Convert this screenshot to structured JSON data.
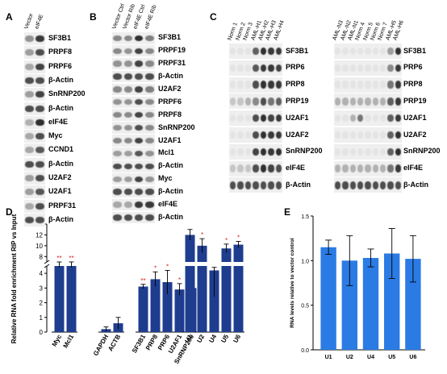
{
  "panel_letters": {
    "A": "A",
    "B": "B",
    "C": "C",
    "D": "D",
    "E": "E"
  },
  "panel_A": {
    "columns": [
      "Vector",
      "eIF4E"
    ],
    "rows": [
      {
        "label": "SF3B1",
        "bands": [
          0.45,
          0.9
        ]
      },
      {
        "label": "PRPF8",
        "bands": [
          0.4,
          0.8
        ]
      },
      {
        "label": "PRPF6",
        "bands": [
          0.35,
          0.85
        ]
      },
      {
        "label": "β-Actin",
        "bands": [
          0.8,
          0.8
        ]
      },
      {
        "label": "SnRNP200",
        "bands": [
          0.4,
          0.85
        ]
      },
      {
        "label": "β-Actin",
        "bands": [
          0.8,
          0.8
        ]
      },
      {
        "label": "eIF4E",
        "bands": [
          0.3,
          0.95
        ]
      },
      {
        "label": "Myc",
        "bands": [
          0.35,
          0.8
        ]
      },
      {
        "label": "CCND1",
        "bands": [
          0.35,
          0.75
        ]
      },
      {
        "label": "β-Actin",
        "bands": [
          0.8,
          0.8
        ]
      },
      {
        "label": "U2AF2",
        "bands": [
          0.4,
          0.8
        ]
      },
      {
        "label": "U2AF1",
        "bands": [
          0.4,
          0.75
        ]
      },
      {
        "label": "PRPF31",
        "bands": [
          0.35,
          0.8
        ]
      },
      {
        "label": "β-Actin",
        "bands": [
          0.8,
          0.8
        ]
      }
    ]
  },
  "panel_B": {
    "columns": [
      "Vector Ctrl",
      "Vector Rib",
      "eIF4E Ctrl",
      "eIF4E Rib"
    ],
    "rows": [
      {
        "label": "SF3B1",
        "bands": [
          0.5,
          0.5,
          0.95,
          0.55
        ]
      },
      {
        "label": "PRPF19",
        "bands": [
          0.5,
          0.45,
          0.85,
          0.5
        ]
      },
      {
        "label": "PRPF31",
        "bands": [
          0.45,
          0.45,
          0.85,
          0.5
        ]
      },
      {
        "label": "β-Actin",
        "bands": [
          0.8,
          0.8,
          0.8,
          0.8
        ]
      },
      {
        "label": "U2AF2",
        "bands": [
          0.5,
          0.5,
          0.85,
          0.55
        ]
      },
      {
        "label": "PRPF6",
        "bands": [
          0.45,
          0.45,
          0.8,
          0.5
        ]
      },
      {
        "label": "PRPF8",
        "bands": [
          0.5,
          0.5,
          0.85,
          0.5
        ]
      },
      {
        "label": "SnRNP200",
        "bands": [
          0.45,
          0.45,
          0.8,
          0.5
        ]
      },
      {
        "label": "U2AF1",
        "bands": [
          0.5,
          0.5,
          0.85,
          0.5
        ]
      },
      {
        "label": "Mcl1",
        "bands": [
          0.4,
          0.4,
          0.75,
          0.45
        ]
      },
      {
        "label": "β-Actin",
        "bands": [
          0.8,
          0.8,
          0.8,
          0.8
        ]
      },
      {
        "label": "Myc",
        "bands": [
          0.4,
          0.4,
          0.85,
          0.45
        ]
      },
      {
        "label": "β-Actin",
        "bands": [
          0.8,
          0.8,
          0.8,
          0.8
        ]
      },
      {
        "label": "eIF4E",
        "bands": [
          0.35,
          0.35,
          0.9,
          0.9
        ]
      },
      {
        "label": "β-Actin",
        "bands": [
          0.8,
          0.8,
          0.8,
          0.8
        ]
      }
    ]
  },
  "panel_C_left": {
    "columns": [
      "Norm 1",
      "Norm 2",
      "Norm 3",
      "AML-H1",
      "AML-H2",
      "AML-H3",
      "AML-H4"
    ],
    "rows": [
      {
        "label": "SF3B1",
        "bands": [
          0.05,
          0.05,
          0.05,
          0.7,
          0.95,
          0.9,
          0.9
        ]
      },
      {
        "label": "PRP6",
        "bands": [
          0.05,
          0.05,
          0.05,
          0.75,
          0.9,
          0.9,
          0.85
        ]
      },
      {
        "label": "PRP8",
        "bands": [
          0.05,
          0.05,
          0.05,
          0.8,
          0.95,
          0.9,
          0.9
        ]
      },
      {
        "label": "PRP19",
        "bands": [
          0.2,
          0.2,
          0.3,
          0.5,
          0.8,
          0.6,
          0.7
        ]
      },
      {
        "label": "U2AF1",
        "bands": [
          0.05,
          0.05,
          0.05,
          0.8,
          0.95,
          0.85,
          0.9
        ]
      },
      {
        "label": "U2AF2",
        "bands": [
          0.05,
          0.05,
          0.05,
          0.8,
          0.95,
          0.9,
          0.9
        ]
      },
      {
        "label": "SnRNP200",
        "bands": [
          0.05,
          0.05,
          0.05,
          0.85,
          0.95,
          0.9,
          0.95
        ]
      },
      {
        "label": "eIF4E",
        "bands": [
          0.2,
          0.2,
          0.2,
          0.8,
          0.95,
          0.85,
          0.8
        ]
      },
      {
        "label": "β-Actin",
        "bands": [
          0.8,
          0.8,
          0.8,
          0.8,
          0.8,
          0.8,
          0.8
        ]
      }
    ]
  },
  "panel_C_right": {
    "columns": [
      "AML-N3",
      "AML-N2",
      "AML-N1",
      "Norm 4",
      "Norm 5",
      "Norm 6",
      "Norm 7",
      "AML-H5",
      "AML-H6"
    ],
    "rows": [
      {
        "label": "SF3B1",
        "bands": [
          0.05,
          0.05,
          0.05,
          0.05,
          0.05,
          0.05,
          0.05,
          0.4,
          0.95
        ]
      },
      {
        "label": "PRP6",
        "bands": [
          0.05,
          0.05,
          0.05,
          0.05,
          0.05,
          0.05,
          0.05,
          0.5,
          0.9
        ]
      },
      {
        "label": "PRP8",
        "bands": [
          0.05,
          0.05,
          0.05,
          0.05,
          0.05,
          0.05,
          0.05,
          0.6,
          0.9
        ]
      },
      {
        "label": "PRP19",
        "bands": [
          0.3,
          0.3,
          0.3,
          0.3,
          0.3,
          0.3,
          0.3,
          0.7,
          0.9
        ]
      },
      {
        "label": "U2AF1",
        "bands": [
          0.05,
          0.05,
          0.3,
          0.6,
          0.05,
          0.05,
          0.05,
          0.7,
          0.9
        ]
      },
      {
        "label": "U2AF2",
        "bands": [
          0.05,
          0.05,
          0.05,
          0.05,
          0.05,
          0.05,
          0.05,
          0.7,
          0.95
        ]
      },
      {
        "label": "SnRNP200",
        "bands": [
          0.05,
          0.05,
          0.05,
          0.05,
          0.05,
          0.05,
          0.05,
          0.7,
          0.95
        ]
      },
      {
        "label": "eIF4E",
        "bands": [
          0.3,
          0.3,
          0.3,
          0.3,
          0.3,
          0.3,
          0.3,
          0.6,
          0.9
        ]
      },
      {
        "label": "β-Actin",
        "bands": [
          0.8,
          0.8,
          0.8,
          0.8,
          0.8,
          0.8,
          0.8,
          0.8,
          0.8
        ]
      }
    ]
  },
  "chart_data": [
    {
      "type": "bar",
      "panel": "D",
      "ylabel": "Relative RNA fold enrichment RIP vs Input",
      "y_axis": "broken",
      "lower_ylim": [
        0,
        4.5
      ],
      "lower_ticks": [
        0,
        1,
        2,
        3,
        4
      ],
      "upper_ylim": [
        7,
        14
      ],
      "upper_ticks": [
        8,
        10,
        12,
        14
      ],
      "break": 4.6,
      "bar_color": "#1f3d8f",
      "sig_color": "#e02020",
      "groups": [
        {
          "bars": [
            {
              "label": "Myc",
              "value": 6.5,
              "err": 0.5,
              "sig": "**"
            },
            {
              "label": "Mcl1",
              "value": 6.5,
              "err": 0.5,
              "sig": "**"
            }
          ]
        },
        {
          "bars": [
            {
              "label": "GAPDH",
              "value": 0.2,
              "err": 0.15,
              "sig": ""
            },
            {
              "label": "ACTB",
              "value": 0.6,
              "err": 0.4,
              "sig": ""
            }
          ]
        },
        {
          "bars": [
            {
              "label": "SF3B1",
              "value": 3.1,
              "err": 0.15,
              "sig": "**"
            },
            {
              "label": "PRP8",
              "value": 3.6,
              "err": 0.5,
              "sig": "*"
            },
            {
              "label": "PRP6",
              "value": 3.4,
              "err": 0.8,
              "sig": "*"
            },
            {
              "label": "U2AF1",
              "value": 2.9,
              "err": 0.4,
              "sig": "*"
            },
            {
              "label": "SnRNP200",
              "value": 3.0,
              "err": 0.35,
              "sig": "*"
            }
          ]
        },
        {
          "bars": [
            {
              "label": "U1",
              "value": 12.0,
              "err": 1.0,
              "sig": ""
            },
            {
              "label": "U2",
              "value": 10.0,
              "err": 1.3,
              "sig": "*"
            },
            {
              "label": "U4",
              "value": 4.2,
              "err": 1.8,
              "sig": ""
            },
            {
              "label": "U5",
              "value": 9.5,
              "err": 0.8,
              "sig": "*"
            },
            {
              "label": "U6",
              "value": 10.2,
              "err": 0.6,
              "sig": "*"
            }
          ]
        }
      ]
    },
    {
      "type": "bar",
      "panel": "E",
      "ylabel": "RNA levels relative to vector control",
      "categories": [
        "U1",
        "U2",
        "U4",
        "U5",
        "U6"
      ],
      "values": [
        1.15,
        1.0,
        1.03,
        1.08,
        1.02
      ],
      "errors": [
        0.08,
        0.28,
        0.1,
        0.28,
        0.26
      ],
      "ylim": [
        0,
        1.5
      ],
      "yticks": [
        "0.0",
        "0.5",
        "1.0",
        "1.5"
      ],
      "bar_color": "#2b7be4"
    }
  ]
}
